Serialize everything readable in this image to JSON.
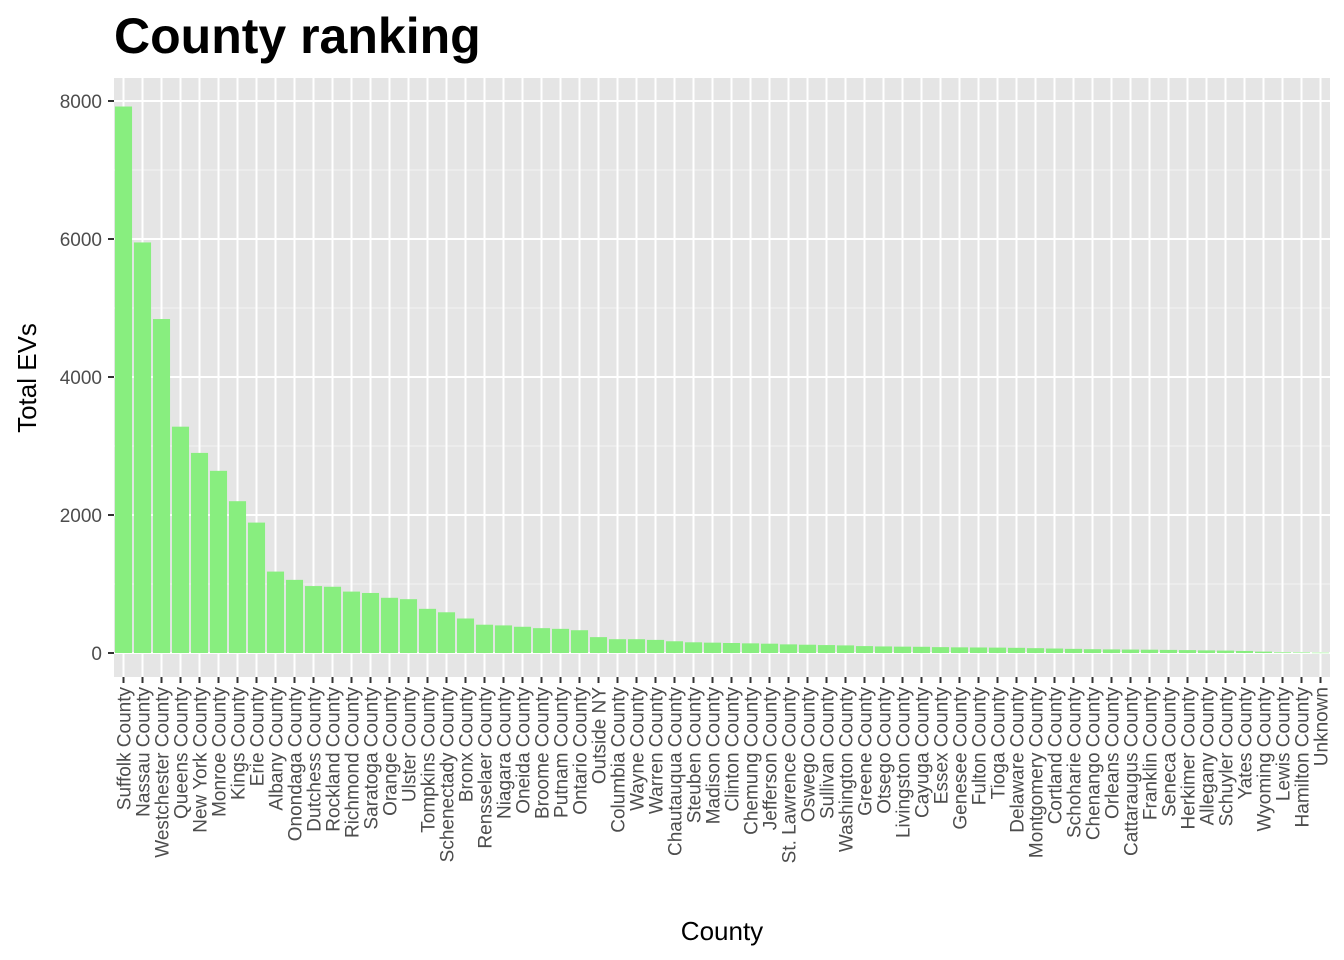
{
  "chart_data": {
    "type": "bar",
    "title": "County ranking",
    "xlabel": "County",
    "ylabel": "Total EVs",
    "ylim": [
      0,
      8000
    ],
    "yticks": [
      0,
      2000,
      4000,
      6000,
      8000
    ],
    "grid": true,
    "bar_color": "#88ee7f",
    "panel_color": "#e5e5e5",
    "categories": [
      "Suffolk County",
      "Nassau County",
      "Westchester County",
      "Queens County",
      "New York County",
      "Monroe County",
      "Kings County",
      "Erie County",
      "Albany County",
      "Onondaga County",
      "Dutchess County",
      "Rockland County",
      "Richmond County",
      "Saratoga County",
      "Orange County",
      "Ulster County",
      "Tompkins County",
      "Schenectady County",
      "Bronx County",
      "Rensselaer County",
      "Niagara County",
      "Oneida County",
      "Broome County",
      "Putnam County",
      "Ontario County",
      "Outside NY",
      "Columbia County",
      "Wayne County",
      "Warren County",
      "Chautauqua County",
      "Steuben County",
      "Madison County",
      "Clinton County",
      "Chemung County",
      "Jefferson County",
      "St. Lawrence County",
      "Oswego County",
      "Sullivan County",
      "Washington County",
      "Greene County",
      "Otsego County",
      "Livingston County",
      "Cayuga County",
      "Essex County",
      "Genesee County",
      "Fulton County",
      "Tioga County",
      "Delaware County",
      "Montgomery County",
      "Cortland County",
      "Schoharie County",
      "Chenango County",
      "Orleans County",
      "Cattaraugus County",
      "Franklin County",
      "Seneca County",
      "Herkimer County",
      "Allegany County",
      "Schuyler County",
      "Yates County",
      "Wyoming County",
      "Lewis County",
      "Hamilton County",
      "Unknown"
    ],
    "values": [
      7920,
      5950,
      4840,
      3280,
      2900,
      2640,
      2200,
      1890,
      1180,
      1060,
      970,
      960,
      890,
      870,
      800,
      780,
      640,
      590,
      500,
      410,
      400,
      380,
      360,
      350,
      330,
      230,
      200,
      200,
      190,
      170,
      155,
      150,
      145,
      140,
      135,
      125,
      120,
      115,
      110,
      100,
      95,
      92,
      90,
      85,
      82,
      80,
      78,
      75,
      70,
      65,
      60,
      55,
      52,
      50,
      48,
      45,
      42,
      38,
      35,
      30,
      20,
      10,
      8,
      5
    ]
  }
}
